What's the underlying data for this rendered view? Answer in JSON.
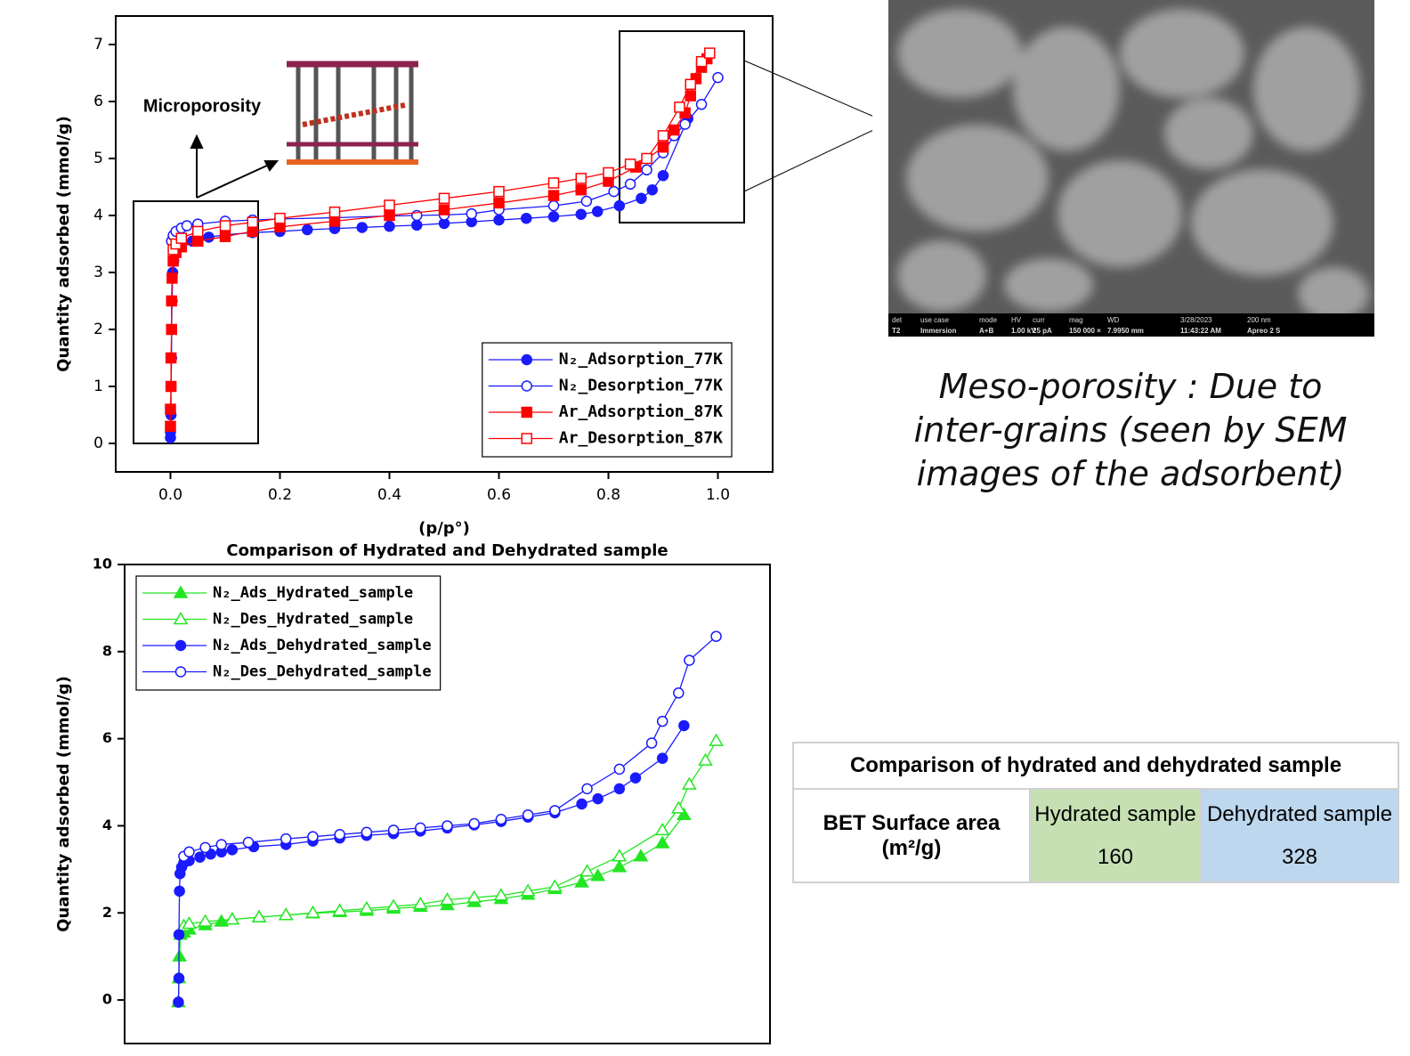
{
  "chart_data": [
    {
      "type": "line",
      "xlabel": "(p/p°)",
      "ylabel": "Quantity adsorbed (mmol/g)",
      "xlim": [
        -0.1,
        1.1
      ],
      "ylim": [
        -0.5,
        7.5
      ],
      "xticks": [
        {
          "value": 0,
          "label": "0.0"
        },
        0.2,
        0.4,
        0.6,
        0.8,
        {
          "value": 1,
          "label": "1.0"
        }
      ],
      "yticks": [
        0,
        1,
        2,
        3,
        4,
        5,
        6,
        7
      ],
      "legend": "lower right",
      "annotation": "Microporosity",
      "series": [
        {
          "name": "N₂_Adsorption_77K",
          "color": "#1a1aff",
          "marker": "circle",
          "filled": true,
          "x": [
            0,
            0,
            0.001,
            0.001,
            0.002,
            0.002,
            0.003,
            0.004,
            0.006,
            0.01,
            0.02,
            0.04,
            0.07,
            0.1,
            0.15,
            0.2,
            0.25,
            0.3,
            0.35,
            0.4,
            0.45,
            0.5,
            0.55,
            0.6,
            0.65,
            0.7,
            0.75,
            0.78,
            0.82,
            0.86,
            0.88,
            0.9,
            0.945
          ],
          "values": [
            0.1,
            0.2,
            0.5,
            1,
            1.5,
            2,
            2.5,
            3,
            3.2,
            3.35,
            3.45,
            3.55,
            3.62,
            3.66,
            3.7,
            3.72,
            3.75,
            3.77,
            3.79,
            3.81,
            3.83,
            3.86,
            3.89,
            3.92,
            3.95,
            3.98,
            4.02,
            4.07,
            4.17,
            4.3,
            4.45,
            4.7,
            5.7
          ]
        },
        {
          "name": "N₂_Desorption_77K",
          "color": "#1a1aff",
          "marker": "circle",
          "filled": false,
          "x": [
            0.002,
            0.005,
            0.01,
            0.02,
            0.03,
            0.05,
            0.1,
            0.15,
            0.2,
            0.3,
            0.4,
            0.45,
            0.5,
            0.55,
            0.6,
            0.7,
            0.76,
            0.81,
            0.84,
            0.87,
            0.9,
            0.92,
            0.94,
            0.97,
            1.0
          ],
          "values": [
            3.55,
            3.65,
            3.72,
            3.78,
            3.82,
            3.85,
            3.9,
            3.92,
            3.94,
            3.96,
            3.99,
            4.0,
            4.01,
            4.03,
            4.1,
            4.17,
            4.25,
            4.42,
            4.55,
            4.8,
            5.1,
            5.4,
            5.6,
            5.95,
            6.42
          ]
        },
        {
          "name": "Ar_Adsorption_87K",
          "color": "#ff0000",
          "marker": "square",
          "filled": true,
          "x": [
            0,
            0,
            0.001,
            0.001,
            0.002,
            0.002,
            0.003,
            0.005,
            0.01,
            0.02,
            0.05,
            0.1,
            0.15,
            0.2,
            0.3,
            0.4,
            0.5,
            0.6,
            0.7,
            0.75,
            0.8,
            0.85,
            0.9,
            0.92,
            0.94,
            0.95,
            0.96,
            0.97,
            0.98
          ],
          "values": [
            0.3,
            0.6,
            1,
            1.5,
            2,
            2.5,
            2.9,
            3.2,
            3.35,
            3.45,
            3.55,
            3.63,
            3.72,
            3.8,
            3.9,
            4.0,
            4.1,
            4.22,
            4.35,
            4.45,
            4.6,
            4.85,
            5.2,
            5.5,
            5.8,
            6.1,
            6.4,
            6.6,
            6.75
          ]
        },
        {
          "name": "Ar_Desorption_87K",
          "color": "#ff0000",
          "marker": "square",
          "filled": false,
          "x": [
            0.005,
            0.01,
            0.02,
            0.05,
            0.1,
            0.15,
            0.2,
            0.3,
            0.4,
            0.5,
            0.6,
            0.7,
            0.75,
            0.8,
            0.84,
            0.87,
            0.9,
            0.93,
            0.95,
            0.97,
            0.985
          ],
          "values": [
            3.4,
            3.5,
            3.6,
            3.72,
            3.82,
            3.88,
            3.95,
            4.06,
            4.18,
            4.3,
            4.42,
            4.57,
            4.65,
            4.75,
            4.9,
            5.0,
            5.4,
            5.9,
            6.3,
            6.7,
            6.85
          ]
        }
      ]
    },
    {
      "type": "line",
      "title": "Comparison of Hydrated and Dehydrated sample",
      "ylabel": "Quantity adsorbed (mmol/g)",
      "xlim": [
        -0.1,
        1.1
      ],
      "ylim": [
        -1,
        10
      ],
      "yticks": [
        0,
        2,
        4,
        6,
        8,
        10
      ],
      "legend": "upper left",
      "series": [
        {
          "name": "N₂_Ads_Hydrated_sample",
          "color": "#22e622",
          "marker": "triangle",
          "filled": true,
          "x": [
            0,
            0.001,
            0.002,
            0.004,
            0.01,
            0.02,
            0.05,
            0.08,
            0.1,
            0.15,
            0.2,
            0.25,
            0.3,
            0.35,
            0.4,
            0.45,
            0.5,
            0.55,
            0.6,
            0.65,
            0.7,
            0.75,
            0.78,
            0.82,
            0.86,
            0.9,
            0.94
          ],
          "values": [
            -0.05,
            0.5,
            1.0,
            1.5,
            1.55,
            1.62,
            1.72,
            1.8,
            1.85,
            1.9,
            1.95,
            1.99,
            2.02,
            2.05,
            2.1,
            2.14,
            2.18,
            2.25,
            2.32,
            2.42,
            2.55,
            2.7,
            2.85,
            3.05,
            3.3,
            3.6,
            4.25
          ]
        },
        {
          "name": "N₂_Des_Hydrated_sample",
          "color": "#22e622",
          "marker": "triangle",
          "filled": false,
          "x": [
            0.01,
            0.02,
            0.05,
            0.1,
            0.15,
            0.2,
            0.25,
            0.3,
            0.35,
            0.4,
            0.45,
            0.5,
            0.55,
            0.6,
            0.65,
            0.7,
            0.76,
            0.82,
            0.9,
            0.93,
            0.95,
            0.98,
            1.0
          ],
          "values": [
            1.7,
            1.75,
            1.8,
            1.85,
            1.9,
            1.95,
            2.0,
            2.05,
            2.1,
            2.15,
            2.2,
            2.3,
            2.35,
            2.4,
            2.5,
            2.6,
            2.95,
            3.3,
            3.9,
            4.4,
            4.95,
            5.5,
            5.95
          ]
        },
        {
          "name": "N₂_Ads_Dehydrated_sample",
          "color": "#1a1aff",
          "marker": "circle",
          "filled": true,
          "x": [
            0,
            0.001,
            0.001,
            0.002,
            0.003,
            0.006,
            0.01,
            0.02,
            0.04,
            0.06,
            0.08,
            0.1,
            0.14,
            0.2,
            0.25,
            0.3,
            0.35,
            0.4,
            0.45,
            0.5,
            0.55,
            0.6,
            0.65,
            0.7,
            0.75,
            0.78,
            0.82,
            0.85,
            0.9,
            0.94
          ],
          "values": [
            -0.05,
            0.5,
            1.5,
            2.5,
            2.9,
            3.05,
            3.15,
            3.2,
            3.28,
            3.35,
            3.4,
            3.45,
            3.52,
            3.57,
            3.65,
            3.72,
            3.78,
            3.82,
            3.88,
            3.95,
            4.02,
            4.1,
            4.2,
            4.3,
            4.5,
            4.62,
            4.85,
            5.1,
            5.55,
            6.3
          ]
        },
        {
          "name": "N₂_Des_Dehydrated_sample",
          "color": "#1a1aff",
          "marker": "circle",
          "filled": false,
          "x": [
            0.01,
            0.02,
            0.05,
            0.08,
            0.13,
            0.2,
            0.25,
            0.3,
            0.35,
            0.4,
            0.45,
            0.5,
            0.55,
            0.6,
            0.65,
            0.7,
            0.76,
            0.82,
            0.88,
            0.9,
            0.93,
            0.95,
            1.0
          ],
          "values": [
            3.3,
            3.4,
            3.5,
            3.57,
            3.62,
            3.7,
            3.75,
            3.8,
            3.85,
            3.9,
            3.95,
            4.0,
            4.05,
            4.15,
            4.25,
            4.35,
            4.85,
            5.3,
            5.9,
            6.4,
            7.05,
            7.8,
            8.35
          ]
        }
      ]
    }
  ],
  "caption": [
    "Meso-porosity : Due to",
    "inter-grains (seen by SEM",
    "images of the adsorbent)"
  ],
  "sem_info": [
    [
      "det",
      "T2"
    ],
    [
      "use case",
      "Immersion"
    ],
    [
      "mode",
      "A+B"
    ],
    [
      "HV",
      "1.00 kV"
    ],
    [
      "curr",
      "25 pA"
    ],
    [
      "mag",
      "150 000 ×"
    ],
    [
      "WD",
      "7.9950 mm"
    ],
    [
      "3/28/2023",
      "11:43:22 AM"
    ],
    [
      "200 nm",
      "Apreo 2 S"
    ]
  ],
  "table": {
    "title": "Comparison of hydrated and dehydrated sample",
    "row_label": "BET Surface area (m²/g)",
    "columns": [
      {
        "name": "Hydrated sample",
        "value": "160"
      },
      {
        "name": "Dehydrated sample",
        "value": "328"
      }
    ]
  }
}
